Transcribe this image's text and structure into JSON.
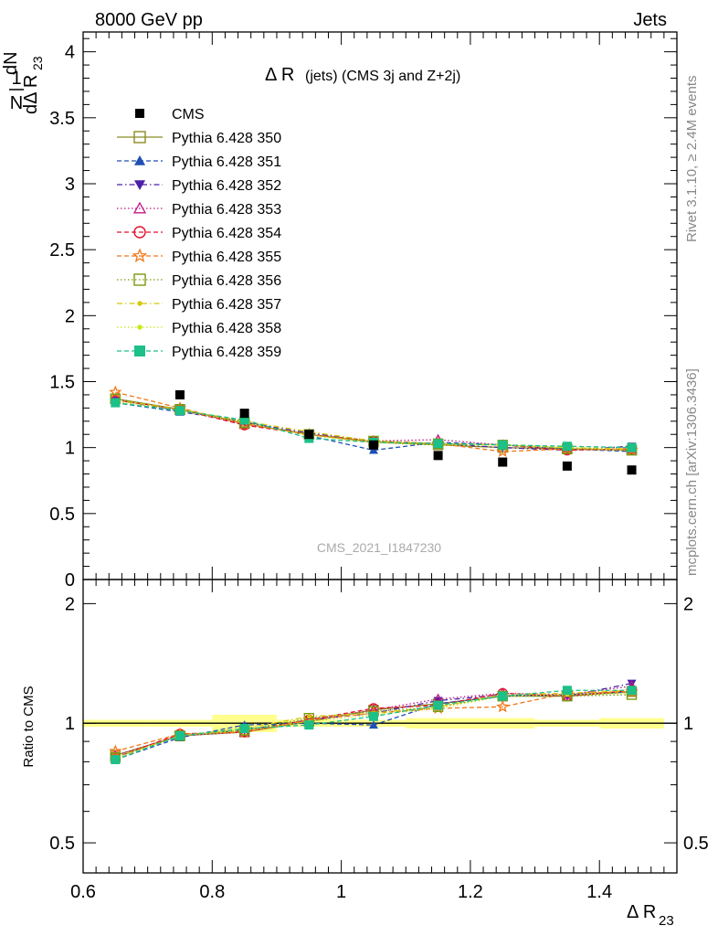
{
  "header": {
    "left": "8000 GeV pp",
    "right": "Jets"
  },
  "side": {
    "rivet": "Rivet 3.1.10, ≥ 2.4M events",
    "mcplots": "mcplots.cern.ch [arXiv:1306.3436]"
  },
  "chart_data": [
    {
      "type": "scatter",
      "title": "Δ R (jets) (CMS 3j and Z+2j)",
      "title_main": "Δ R",
      "title_sub": "(jets) (CMS 3j and Z+2j)",
      "ylabel": "1/N dN/dΔ R23",
      "ylabel_parts": {
        "one": "1",
        "N": "N",
        "dN": "dN",
        "d": "dΔ R",
        "sub": "23"
      },
      "watermark": "CMS_2021_I1847230",
      "xlim": [
        0.6,
        1.52
      ],
      "ylim": [
        0,
        4.15
      ],
      "yticks": [
        0,
        0.5,
        1,
        1.5,
        2,
        2.5,
        3,
        3.5,
        4
      ],
      "ytick_labels": [
        "0",
        "0.5",
        "1",
        "1.5",
        "2",
        "2.5",
        "3",
        "3.5",
        "4"
      ],
      "x": [
        0.65,
        0.75,
        0.85,
        0.95,
        1.05,
        1.15,
        1.25,
        1.35,
        1.45
      ],
      "legend_position": "top-left",
      "series": [
        {
          "name": "CMS",
          "color": "#000000",
          "marker": "square-filled",
          "line": "none",
          "values": [
            null,
            1.4,
            1.26,
            1.1,
            1.02,
            0.94,
            0.89,
            0.86,
            0.83
          ]
        },
        {
          "name": "Pythia 6.428 350",
          "color": "#8b8b23",
          "marker": "square-open",
          "line": "solid",
          "values": [
            1.37,
            1.29,
            1.18,
            1.1,
            1.04,
            1.02,
            1.0,
            0.99,
            0.98
          ]
        },
        {
          "name": "Pythia 6.428 351",
          "color": "#1f4fb4",
          "marker": "triangle-up",
          "line": "dashed",
          "values": [
            1.34,
            1.27,
            1.2,
            1.09,
            0.98,
            1.04,
            1.02,
            0.99,
            0.97
          ]
        },
        {
          "name": "Pythia 6.428 352",
          "color": "#4b1fa8",
          "marker": "triangle-down",
          "line": "dashdot",
          "values": [
            1.36,
            1.28,
            1.19,
            1.11,
            1.05,
            1.03,
            1.0,
            0.98,
            1.01
          ]
        },
        {
          "name": "Pythia 6.428 353",
          "color": "#c2188a",
          "marker": "triangle-open",
          "line": "dotted",
          "values": [
            1.37,
            1.28,
            1.18,
            1.1,
            1.05,
            1.06,
            1.02,
            0.99,
            0.99
          ]
        },
        {
          "name": "Pythia 6.428 354",
          "color": "#e0102a",
          "marker": "circle-open",
          "line": "dashed",
          "values": [
            1.36,
            1.29,
            1.17,
            1.1,
            1.05,
            1.03,
            1.02,
            0.98,
            0.99
          ]
        },
        {
          "name": "Pythia 6.428 355",
          "color": "#f07818",
          "marker": "star-open",
          "line": "dashed",
          "values": [
            1.42,
            1.3,
            1.18,
            1.1,
            1.04,
            1.03,
            0.97,
            0.99,
            0.98
          ]
        },
        {
          "name": "Pythia 6.428 356",
          "color": "#7a9a10",
          "marker": "square-open",
          "line": "dotted",
          "values": [
            1.37,
            1.29,
            1.19,
            1.1,
            1.05,
            1.03,
            1.02,
            0.99,
            0.98
          ]
        },
        {
          "name": "Pythia 6.428 357",
          "color": "#d8c80a",
          "marker": "dot",
          "line": "dashdot",
          "values": [
            1.36,
            1.29,
            1.2,
            1.12,
            1.05,
            1.03,
            1.02,
            1.0,
            0.99
          ]
        },
        {
          "name": "Pythia 6.428 358",
          "color": "#c8e814",
          "marker": "dot",
          "line": "dotted",
          "values": [
            1.35,
            1.28,
            1.19,
            1.09,
            1.04,
            1.02,
            1.02,
            1.0,
            0.98
          ]
        },
        {
          "name": "Pythia 6.428 359",
          "color": "#1cc088",
          "marker": "square-filled",
          "line": "dashed",
          "values": [
            1.34,
            1.28,
            1.21,
            1.07,
            1.04,
            1.03,
            1.02,
            1.01,
            1.0
          ]
        }
      ]
    },
    {
      "type": "scatter",
      "title": "",
      "ylabel": "Ratio to CMS",
      "xlabel": "Δ R23",
      "xlabel_parts": {
        "main": "Δ R",
        "sub": "23"
      },
      "xlim": [
        0.6,
        1.52
      ],
      "ylim": [
        0.42,
        2.3
      ],
      "yscale": "log",
      "yticks": [
        0.5,
        1,
        2
      ],
      "ytick_labels": [
        "0.5",
        "1",
        "2"
      ],
      "xticks": [
        0.6,
        0.8,
        1.0,
        1.2,
        1.4
      ],
      "xtick_labels": [
        "0.6",
        "0.8",
        "1",
        "1.2",
        "1.4"
      ],
      "x": [
        0.65,
        0.75,
        0.85,
        0.95,
        1.05,
        1.15,
        1.25,
        1.35,
        1.45
      ],
      "reference_line": 1,
      "uncertainty_band": {
        "color": "#ffff66",
        "x_edges": [
          0.6,
          0.7,
          0.8,
          0.9,
          1.0,
          1.1,
          1.2,
          1.3,
          1.4,
          1.5
        ],
        "half_width": [
          0.02,
          0.02,
          0.05,
          0.02,
          0.02,
          0.03,
          0.03,
          0.02,
          0.03
        ]
      },
      "series": [
        {
          "name": "Pythia 6.428 350",
          "values": [
            0.83,
            0.93,
            0.95,
            1.01,
            1.08,
            1.12,
            1.17,
            1.17,
            1.2
          ]
        },
        {
          "name": "Pythia 6.428 351",
          "values": [
            0.81,
            0.92,
            0.99,
            1.0,
            0.99,
            1.12,
            1.17,
            1.18,
            1.2
          ]
        },
        {
          "name": "Pythia 6.428 352",
          "values": [
            0.82,
            0.93,
            0.96,
            1.02,
            1.06,
            1.14,
            1.18,
            1.17,
            1.26
          ]
        },
        {
          "name": "Pythia 6.428 353",
          "values": [
            0.83,
            0.93,
            0.95,
            1.02,
            1.08,
            1.15,
            1.19,
            1.18,
            1.24
          ]
        },
        {
          "name": "Pythia 6.428 354",
          "values": [
            0.82,
            0.94,
            0.95,
            1.02,
            1.09,
            1.11,
            1.19,
            1.17,
            1.21
          ]
        },
        {
          "name": "Pythia 6.428 355",
          "values": [
            0.85,
            0.94,
            0.95,
            1.02,
            1.06,
            1.09,
            1.1,
            1.19,
            1.2
          ]
        },
        {
          "name": "Pythia 6.428 356",
          "values": [
            0.82,
            0.93,
            0.96,
            1.03,
            1.07,
            1.1,
            1.17,
            1.17,
            1.18
          ]
        },
        {
          "name": "Pythia 6.428 357",
          "values": [
            0.82,
            0.93,
            0.97,
            1.04,
            1.06,
            1.1,
            1.18,
            1.19,
            1.21
          ]
        },
        {
          "name": "Pythia 6.428 358",
          "values": [
            0.81,
            0.93,
            0.96,
            1.01,
            1.05,
            1.09,
            1.17,
            1.18,
            1.19
          ]
        },
        {
          "name": "Pythia 6.428 359",
          "values": [
            0.81,
            0.93,
            0.97,
            0.99,
            1.04,
            1.11,
            1.17,
            1.21,
            1.21
          ]
        }
      ]
    }
  ]
}
